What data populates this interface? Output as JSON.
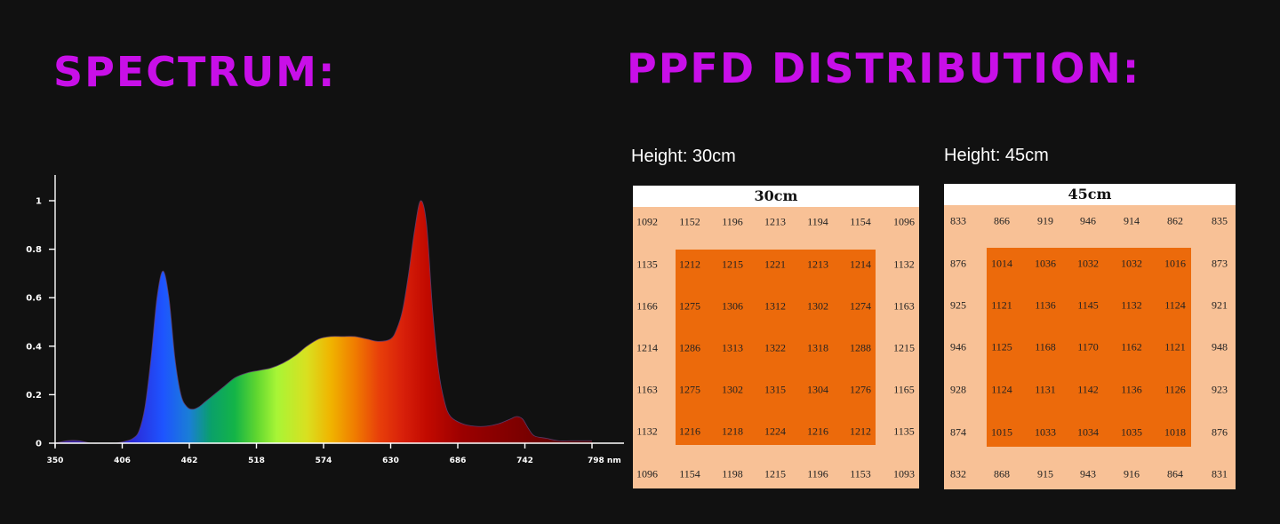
{
  "spectrum": {
    "heading": "SPECTRUM:"
  },
  "ppfd": {
    "heading": "PPFD DISTRIBUTION:",
    "panels": [
      {
        "height_label": "Height: 30cm",
        "grid_title": "30cm",
        "values": [
          [
            1092,
            1152,
            1196,
            1213,
            1194,
            1154,
            1096
          ],
          [
            1135,
            1212,
            1215,
            1221,
            1213,
            1214,
            1132
          ],
          [
            1166,
            1275,
            1306,
            1312,
            1302,
            1274,
            1163
          ],
          [
            1214,
            1286,
            1313,
            1322,
            1318,
            1288,
            1215
          ],
          [
            1163,
            1275,
            1302,
            1315,
            1304,
            1276,
            1165
          ],
          [
            1132,
            1216,
            1218,
            1224,
            1216,
            1212,
            1135
          ],
          [
            1096,
            1154,
            1198,
            1215,
            1196,
            1153,
            1093
          ]
        ]
      },
      {
        "height_label": "Height: 45cm",
        "grid_title": "45cm",
        "values": [
          [
            833,
            866,
            919,
            946,
            914,
            862,
            835
          ],
          [
            876,
            1014,
            1036,
            1032,
            1032,
            1016,
            873
          ],
          [
            925,
            1121,
            1136,
            1145,
            1132,
            1124,
            921
          ],
          [
            946,
            1125,
            1168,
            1170,
            1162,
            1121,
            948
          ],
          [
            928,
            1124,
            1131,
            1142,
            1136,
            1126,
            923
          ],
          [
            874,
            1015,
            1033,
            1034,
            1035,
            1018,
            876
          ],
          [
            832,
            868,
            915,
            943,
            916,
            864,
            831
          ]
        ]
      }
    ],
    "colors": {
      "outer": "#f8c196",
      "inner": "#ec6a0b",
      "header": "#ffffff"
    }
  },
  "colors": {
    "heading": "#c80fe8",
    "background": "#111111",
    "text": "#ffffff"
  },
  "chart_data": [
    {
      "type": "area",
      "xlabel": "",
      "ylabel": "",
      "x_unit": "nm",
      "xlim": [
        350,
        800
      ],
      "ylim": [
        0,
        1.1
      ],
      "x_ticks": [
        350,
        406,
        462,
        518,
        574,
        630,
        686,
        742,
        798
      ],
      "x_tick_labels": [
        "350",
        "406",
        "462",
        "518",
        "574",
        "630",
        "686",
        "742",
        "798 nm"
      ],
      "y_ticks": [
        0,
        0.2,
        0.4,
        0.6,
        0.8,
        1
      ],
      "y_tick_labels": [
        "0",
        "0.2",
        "0.4",
        "0.6",
        "0.8",
        "1"
      ],
      "grid": false,
      "legend": "none",
      "fill": "wavelength-colored spectrum gradient",
      "series": [
        {
          "x": [
            350,
            360,
            370,
            380,
            390,
            400,
            410,
            415,
            420,
            425,
            430,
            435,
            440,
            445,
            450,
            455,
            460,
            465,
            470,
            475,
            480,
            490,
            500,
            510,
            520,
            530,
            540,
            550,
            560,
            570,
            580,
            590,
            600,
            610,
            620,
            630,
            635,
            640,
            645,
            650,
            655,
            660,
            665,
            670,
            675,
            680,
            690,
            700,
            710,
            720,
            730,
            735,
            740,
            745,
            750,
            760,
            770,
            780,
            790,
            798
          ],
          "y": [
            0,
            0.01,
            0.01,
            0,
            0,
            0,
            0.01,
            0.02,
            0.05,
            0.15,
            0.35,
            0.6,
            0.71,
            0.6,
            0.35,
            0.2,
            0.15,
            0.14,
            0.15,
            0.17,
            0.19,
            0.23,
            0.27,
            0.29,
            0.3,
            0.31,
            0.33,
            0.36,
            0.4,
            0.43,
            0.44,
            0.44,
            0.44,
            0.43,
            0.42,
            0.43,
            0.47,
            0.55,
            0.7,
            0.88,
            1.0,
            0.9,
            0.55,
            0.3,
            0.17,
            0.11,
            0.08,
            0.07,
            0.07,
            0.08,
            0.1,
            0.11,
            0.1,
            0.06,
            0.03,
            0.02,
            0.01,
            0.01,
            0.01,
            0.01
          ]
        }
      ]
    },
    {
      "type": "heatmap",
      "title": "30cm",
      "rows": 7,
      "cols": 7,
      "values": [
        [
          1092,
          1152,
          1196,
          1213,
          1194,
          1154,
          1096
        ],
        [
          1135,
          1212,
          1215,
          1221,
          1213,
          1214,
          1132
        ],
        [
          1166,
          1275,
          1306,
          1312,
          1302,
          1274,
          1163
        ],
        [
          1214,
          1286,
          1313,
          1322,
          1318,
          1288,
          1215
        ],
        [
          1163,
          1275,
          1302,
          1315,
          1304,
          1276,
          1165
        ],
        [
          1132,
          1216,
          1218,
          1224,
          1216,
          1212,
          1135
        ],
        [
          1096,
          1154,
          1198,
          1215,
          1196,
          1153,
          1093
        ]
      ]
    },
    {
      "type": "heatmap",
      "title": "45cm",
      "rows": 7,
      "cols": 7,
      "values": [
        [
          833,
          866,
          919,
          946,
          914,
          862,
          835
        ],
        [
          876,
          1014,
          1036,
          1032,
          1032,
          1016,
          873
        ],
        [
          925,
          1121,
          1136,
          1145,
          1132,
          1124,
          921
        ],
        [
          946,
          1125,
          1168,
          1170,
          1162,
          1121,
          948
        ],
        [
          928,
          1124,
          1131,
          1142,
          1136,
          1126,
          923
        ],
        [
          874,
          1015,
          1033,
          1034,
          1035,
          1018,
          876
        ],
        [
          832,
          868,
          915,
          943,
          916,
          864,
          831
        ]
      ]
    }
  ]
}
